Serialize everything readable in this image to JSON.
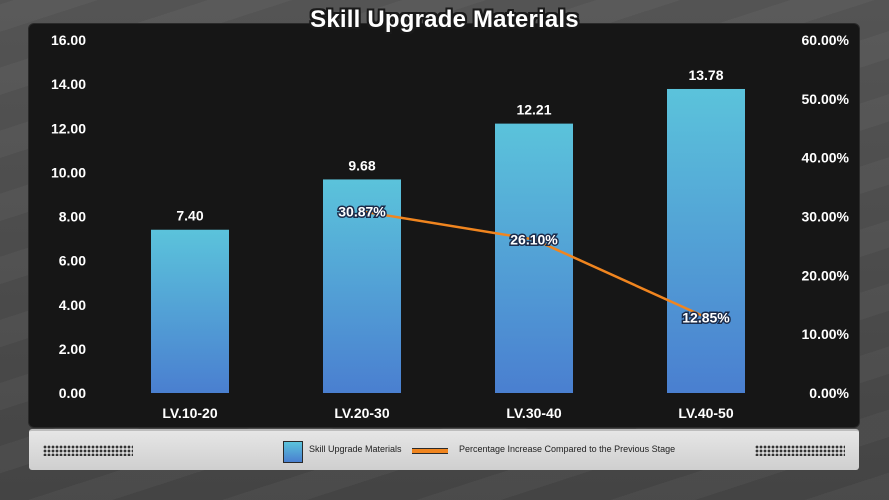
{
  "title": "Skill Upgrade Materials",
  "legend": {
    "bar_label": "Skill Upgrade Materials",
    "line_label": "Percentage Increase Compared to the Previous Stage"
  },
  "colors": {
    "bar_top": "#5bc3db",
    "bar_bottom": "#4a7fd0",
    "line": "#f0851f",
    "panel": "#161616"
  },
  "chart_data": {
    "type": "bar",
    "categories": [
      "LV.10-20",
      "LV.20-30",
      "LV.30-40",
      "LV.40-50"
    ],
    "series": [
      {
        "name": "Skill Upgrade Materials",
        "type": "bar",
        "axis": "left",
        "values": [
          7.4,
          9.68,
          12.21,
          13.78
        ],
        "labels": [
          "7.40",
          "9.68",
          "12.21",
          "13.78"
        ]
      },
      {
        "name": "Percentage Increase Compared to the Previous Stage",
        "type": "line",
        "axis": "right",
        "values": [
          null,
          30.87,
          26.1,
          12.85
        ],
        "labels": [
          null,
          "30.87%",
          "26.10%",
          "12.85%"
        ]
      }
    ],
    "y_left": {
      "range": [
        0,
        16
      ],
      "ticks": [
        "0.00",
        "2.00",
        "4.00",
        "6.00",
        "8.00",
        "10.00",
        "12.00",
        "14.00",
        "16.00"
      ]
    },
    "y_right": {
      "range": [
        0,
        60
      ],
      "ticks": [
        "0.00%",
        "10.00%",
        "20.00%",
        "30.00%",
        "40.00%",
        "50.00%",
        "60.00%"
      ]
    },
    "grid": false,
    "legend_position": "bottom"
  }
}
